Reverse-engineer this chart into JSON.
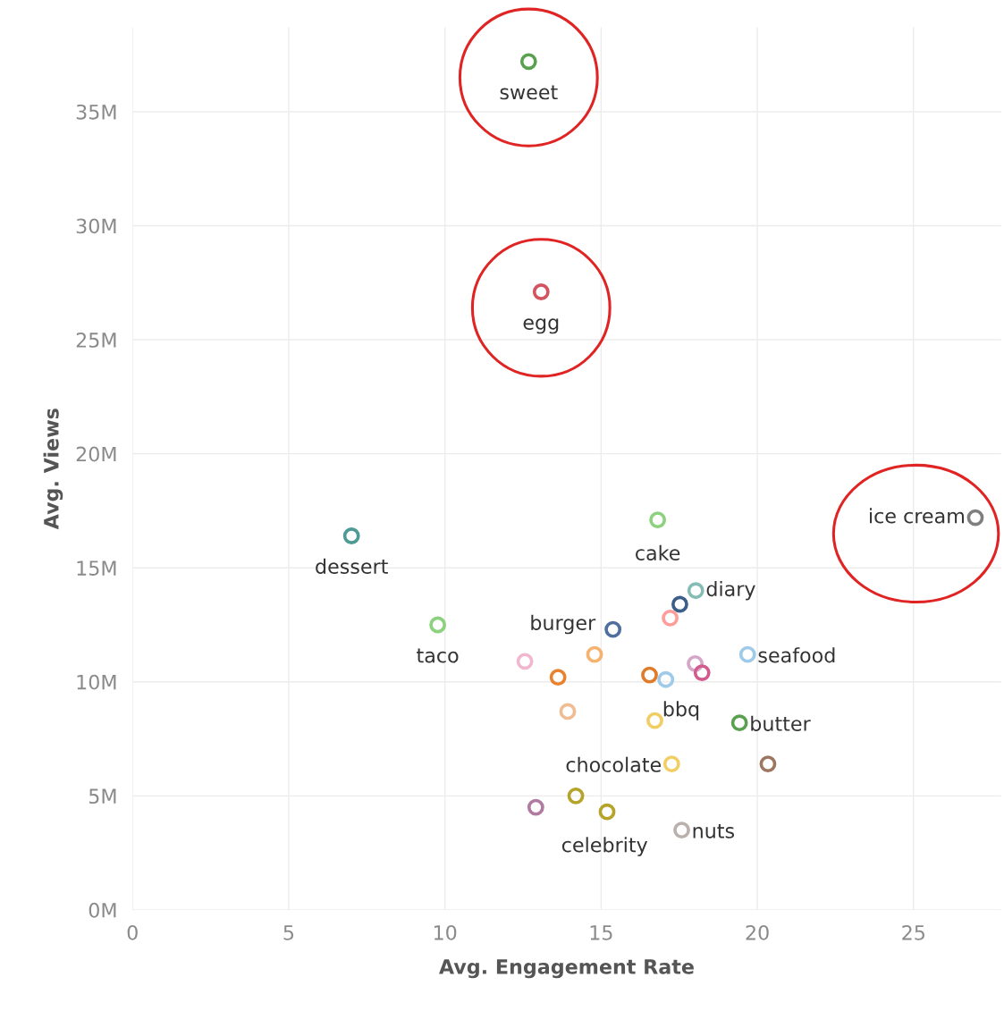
{
  "chart_data": {
    "type": "scatter",
    "xlabel": "Avg. Engagement Rate",
    "ylabel": "Avg. Views",
    "xlim": [
      0,
      27.8
    ],
    "ylim": [
      0,
      38.7
    ],
    "xticks": [
      0,
      5,
      10,
      15,
      20,
      25
    ],
    "yticks": [
      {
        "value": 0,
        "label": "0M"
      },
      {
        "value": 5,
        "label": "5M"
      },
      {
        "value": 10,
        "label": "10M"
      },
      {
        "value": 15,
        "label": "15M"
      },
      {
        "value": 20,
        "label": "20M"
      },
      {
        "value": 25,
        "label": "25M"
      },
      {
        "value": 30,
        "label": "30M"
      },
      {
        "value": 35,
        "label": "35M"
      }
    ],
    "grid": true,
    "marker": "circle",
    "series": [
      {
        "name": "sweet",
        "color": "#59a14f",
        "x": [
          12.68
        ],
        "values": [
          37.2
        ]
      },
      {
        "name": "egg",
        "color": "#d3545f",
        "x": [
          13.08
        ],
        "values": [
          27.1
        ]
      },
      {
        "name": "ice cream",
        "color": "#7f7f7f",
        "x": [
          26.98
        ],
        "values": [
          17.2
        ]
      },
      {
        "name": "dessert",
        "color": "#4e9a94",
        "x": [
          7.01
        ],
        "values": [
          16.4
        ]
      },
      {
        "name": "cake",
        "color": "#8cd17d",
        "x": [
          16.81
        ],
        "values": [
          17.1
        ]
      },
      {
        "name": "diary",
        "color": "#86bcb6",
        "x": [
          18.03
        ],
        "values": [
          14.0
        ]
      },
      {
        "name": "burger",
        "color": "#4e6fa0",
        "x": [
          15.38
        ],
        "values": [
          12.3
        ]
      },
      {
        "name": "taco",
        "color": "#8cd17d",
        "x": [
          9.77
        ],
        "values": [
          12.5
        ]
      },
      {
        "name": "seafood",
        "color": "#a0cbe8",
        "x": [
          19.69
        ],
        "values": [
          11.2
        ]
      },
      {
        "name": "bbq",
        "color": "#f1ce63",
        "x": [
          16.72
        ],
        "values": [
          8.3
        ]
      },
      {
        "name": "butter",
        "color": "#59a14f",
        "x": [
          19.43
        ],
        "values": [
          8.2
        ]
      },
      {
        "name": "chocolate",
        "color": "#f1ce63",
        "x": [
          17.26
        ],
        "values": [
          6.4
        ]
      },
      {
        "name": "celebrity",
        "color": "#b5a32a",
        "x": [
          15.19
        ],
        "values": [
          4.3
        ]
      },
      {
        "name": "nuts",
        "color": "#bab0ac",
        "x": [
          17.58
        ],
        "values": [
          3.5
        ]
      },
      {
        "color": "#3c5f8a",
        "x": [
          17.52
        ],
        "values": [
          13.4
        ]
      },
      {
        "color": "#ff9d9a",
        "x": [
          17.21
        ],
        "values": [
          12.8
        ]
      },
      {
        "color": "#f1b6d0",
        "x": [
          12.56
        ],
        "values": [
          10.9
        ]
      },
      {
        "color": "#f4b370",
        "x": [
          14.79
        ],
        "values": [
          11.2
        ]
      },
      {
        "color": "#e8822e",
        "x": [
          13.62
        ],
        "values": [
          10.2
        ]
      },
      {
        "color": "#eebd94",
        "x": [
          13.93
        ],
        "values": [
          8.7
        ]
      },
      {
        "color": "#e07b29",
        "x": [
          16.55
        ],
        "values": [
          10.3
        ]
      },
      {
        "color": "#a0cbe8",
        "x": [
          17.07
        ],
        "values": [
          10.1
        ]
      },
      {
        "color": "#d4a6c8",
        "x": [
          18.01
        ],
        "values": [
          10.8
        ]
      },
      {
        "color": "#d35a8c",
        "x": [
          18.23
        ],
        "values": [
          10.4
        ]
      },
      {
        "color": "#9d7660",
        "x": [
          20.34
        ],
        "values": [
          6.4
        ]
      },
      {
        "color": "#b5a32a",
        "x": [
          14.19
        ],
        "values": [
          5.0
        ]
      },
      {
        "color": "#b07aa1",
        "x": [
          12.91
        ],
        "values": [
          4.5
        ]
      }
    ]
  }
}
